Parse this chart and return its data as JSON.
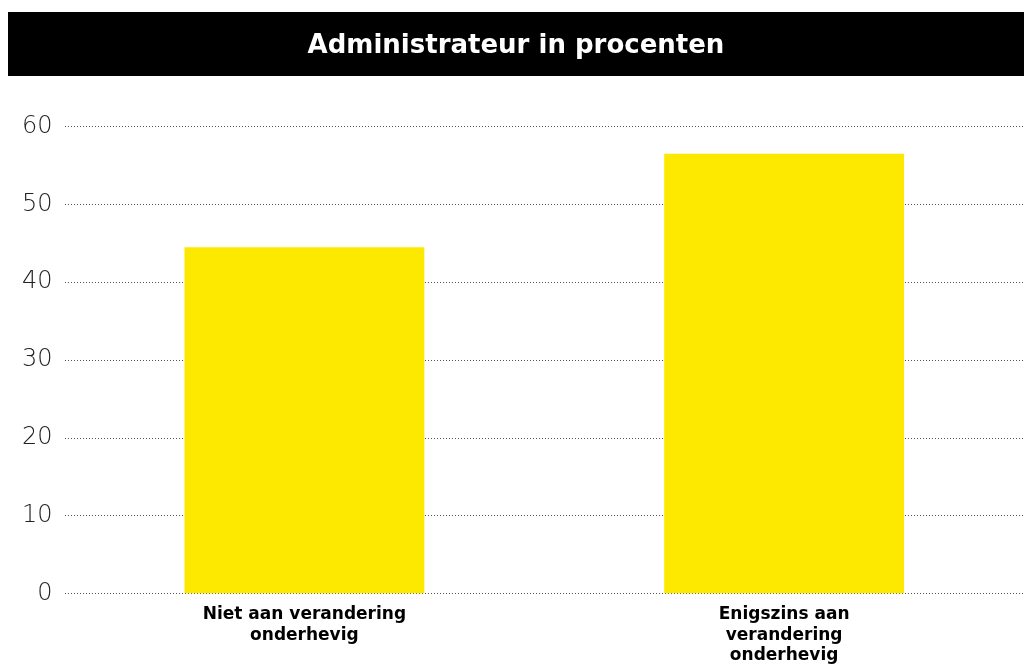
{
  "chart_data": {
    "type": "bar",
    "title": "Administrateur in procenten",
    "categories": [
      "Niet aan verandering onderhevig",
      "Enigszins aan verandering onderhevig"
    ],
    "values": [
      44.5,
      56.5
    ],
    "color": "#fde800",
    "ylim": [
      0,
      60
    ],
    "yticks": [
      0,
      10,
      20,
      30,
      40,
      50,
      60
    ],
    "grid": "y",
    "legend": false
  }
}
